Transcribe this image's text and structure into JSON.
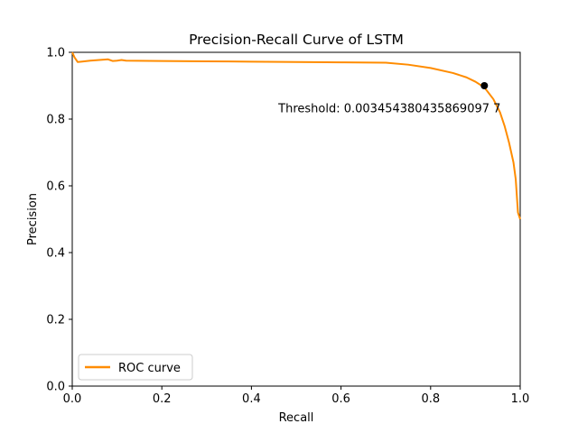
{
  "chart_data": {
    "type": "line",
    "title": "Precision-Recall Curve of LSTM",
    "xlabel": "Recall",
    "ylabel": "Precision",
    "xlim": [
      0.0,
      1.0
    ],
    "ylim": [
      0.0,
      1.0
    ],
    "xticks": [
      "0.0",
      "0.2",
      "0.4",
      "0.6",
      "0.8",
      "1.0"
    ],
    "yticks": [
      "0.0",
      "0.2",
      "0.4",
      "0.6",
      "0.8",
      "1.0"
    ],
    "grid": false,
    "legend_position": "lower-left",
    "series": [
      {
        "name": "ROC curve",
        "color": "#ff8c00",
        "x": [
          0.0,
          0.005,
          0.012,
          0.02,
          0.04,
          0.06,
          0.08,
          0.09,
          0.1,
          0.11,
          0.12,
          0.2,
          0.3,
          0.4,
          0.5,
          0.6,
          0.7,
          0.75,
          0.8,
          0.85,
          0.88,
          0.9,
          0.92,
          0.94,
          0.955,
          0.965,
          0.975,
          0.985,
          0.99,
          0.993,
          0.995,
          1.0
        ],
        "y": [
          1.0,
          0.985,
          0.971,
          0.972,
          0.975,
          0.977,
          0.979,
          0.974,
          0.975,
          0.977,
          0.975,
          0.974,
          0.973,
          0.972,
          0.971,
          0.97,
          0.969,
          0.963,
          0.953,
          0.938,
          0.925,
          0.912,
          0.895,
          0.86,
          0.82,
          0.78,
          0.73,
          0.67,
          0.62,
          0.56,
          0.52,
          0.5
        ]
      }
    ],
    "highlight_point": {
      "x": 0.92,
      "y": 0.9,
      "color": "#000000"
    },
    "annotation": {
      "text": "Threshold: 0.003454380435869097 7",
      "x": 0.46,
      "y": 0.82
    }
  }
}
